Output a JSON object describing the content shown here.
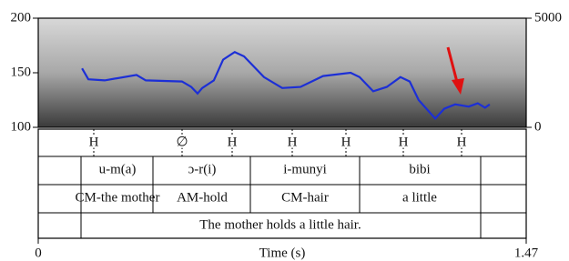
{
  "chart_data": {
    "type": "line",
    "x_label": "Time (s)",
    "xlim": [
      0,
      1.47
    ],
    "xticks": [
      0,
      1.47
    ],
    "ylim": [
      100,
      200
    ],
    "yticks": [
      100,
      150,
      200
    ],
    "y2lim": [
      0,
      5000
    ],
    "y2ticks": [
      0,
      5000
    ],
    "x": [
      0.132,
      0.151,
      0.2,
      0.296,
      0.324,
      0.433,
      0.461,
      0.48,
      0.494,
      0.529,
      0.557,
      0.592,
      0.62,
      0.68,
      0.735,
      0.79,
      0.858,
      0.941,
      0.968,
      1.009,
      1.05,
      1.091,
      1.119,
      1.146,
      1.196,
      1.223,
      1.256,
      1.297,
      1.324,
      1.346,
      1.36
    ],
    "series": [
      {
        "color": "#1c2fd6",
        "values": [
          154,
          144,
          143,
          148,
          143,
          142,
          137,
          131,
          136,
          143,
          162,
          169,
          165,
          146,
          136,
          137,
          147,
          150,
          146,
          133,
          137,
          146,
          142,
          125,
          108,
          117,
          121,
          119,
          122,
          118,
          121
        ]
      }
    ],
    "tiers": [
      {
        "labels": [
          "H",
          "∅",
          "H",
          "H",
          "H",
          "H",
          "H"
        ]
      },
      {
        "labels": [
          "u-m(a)",
          "ɔ-r(i)",
          "i-munyi",
          "bibi"
        ]
      },
      {
        "labels": [
          "CM-the mother",
          "AM-hold",
          "CM-hair",
          "a little"
        ]
      },
      {
        "labels": [
          "The mother holds a little hair."
        ]
      }
    ]
  }
}
